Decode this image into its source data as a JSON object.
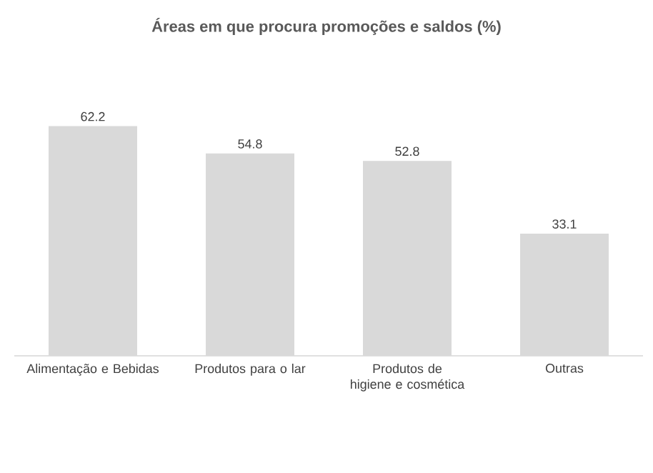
{
  "chart_data": {
    "type": "bar",
    "title": "Áreas em que procura promoções e saldos (%)",
    "categories": [
      "Alimentação e Bebidas",
      "Produtos para o lar",
      "Produtos de higiene e cosmética",
      "Outras"
    ],
    "values": [
      62.2,
      54.8,
      52.8,
      33.1
    ],
    "color": "#d9d9d9",
    "data_labels": true
  }
}
